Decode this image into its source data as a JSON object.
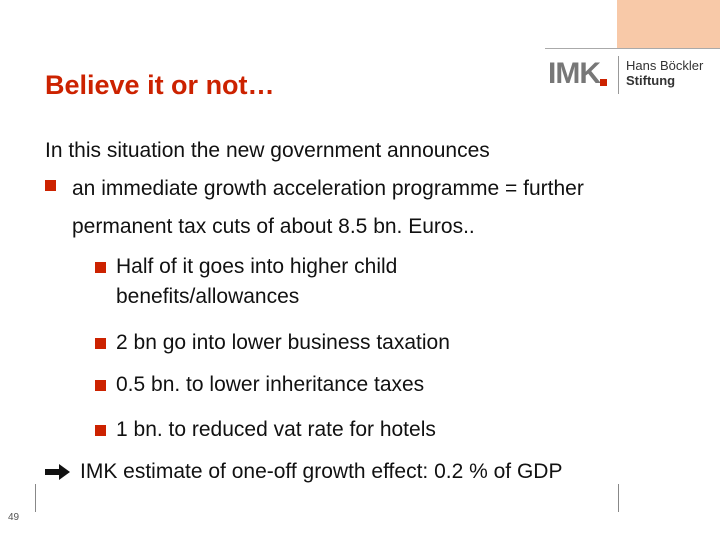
{
  "header": {
    "title": "Believe it or not…",
    "logo": {
      "mark": "IMK",
      "org_line1": "Hans Böckler",
      "org_line2": "Stiftung"
    }
  },
  "body": {
    "intro": "In this situation the new government announces",
    "bullet": {
      "text": "an immediate growth acceleration programme = further permanent tax cuts of about 8.5 bn. Euros..",
      "sub_bullets": [
        "Half of it goes into higher child benefits/allowances",
        "2 bn go into lower business taxation",
        "0.5 bn. to lower inheritance taxes",
        "1 bn. to reduced vat rate for hotels"
      ]
    },
    "conclusion": "IMK estimate of one-off growth effect: 0.2 % of GDP"
  },
  "footer": {
    "page_number": "49"
  }
}
